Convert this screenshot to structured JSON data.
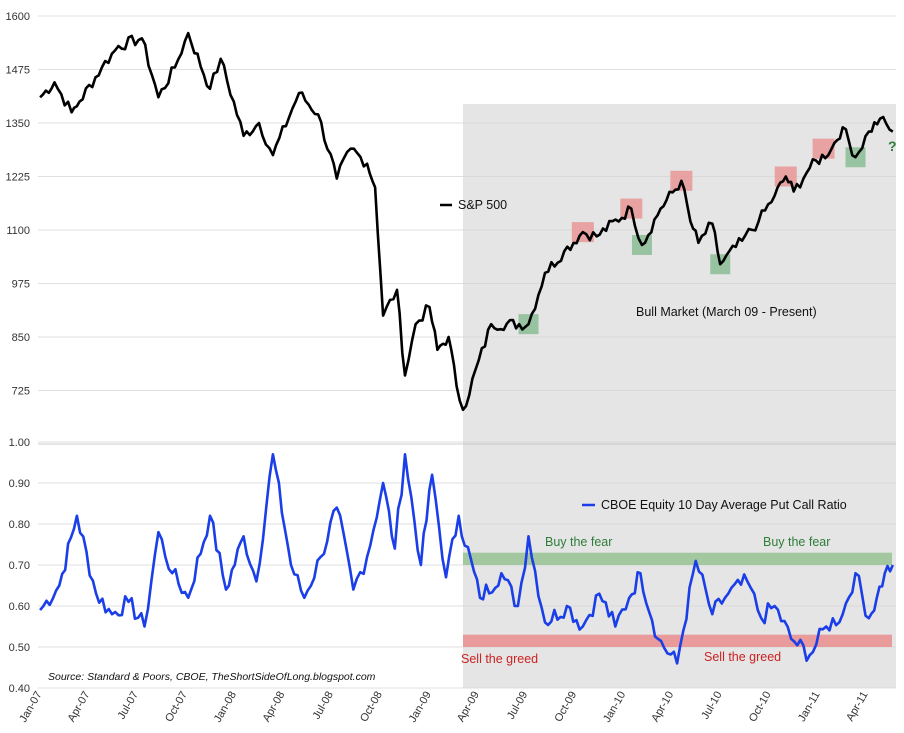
{
  "chart_data": [
    {
      "type": "line",
      "series": [
        {
          "name": "S&P 500",
          "color": "#000000"
        }
      ],
      "ylim": [
        600,
        1600
      ],
      "yticks": [
        "1600",
        "1475",
        "1350",
        "1225",
        "1100",
        "975",
        "850",
        "725"
      ],
      "x_start": "2007-01",
      "x_end": "2011-05",
      "points": [
        [
          "2007-01-05",
          1410
        ],
        [
          "2007-02-01",
          1445
        ],
        [
          "2007-03-05",
          1375
        ],
        [
          "2007-03-20",
          1400
        ],
        [
          "2007-05-01",
          1480
        ],
        [
          "2007-06-01",
          1530
        ],
        [
          "2007-07-15",
          1548
        ],
        [
          "2007-08-15",
          1410
        ],
        [
          "2007-09-15",
          1480
        ],
        [
          "2007-10-10",
          1560
        ],
        [
          "2007-11-20",
          1430
        ],
        [
          "2007-12-10",
          1500
        ],
        [
          "2008-01-22",
          1320
        ],
        [
          "2008-02-20",
          1350
        ],
        [
          "2008-03-17",
          1275
        ],
        [
          "2008-05-05",
          1420
        ],
        [
          "2008-06-10",
          1370
        ],
        [
          "2008-07-15",
          1220
        ],
        [
          "2008-08-10",
          1290
        ],
        [
          "2008-09-10",
          1255
        ],
        [
          "2008-09-25",
          1200
        ],
        [
          "2008-10-10",
          900
        ],
        [
          "2008-11-05",
          960
        ],
        [
          "2008-11-20",
          760
        ],
        [
          "2008-12-10",
          880
        ],
        [
          "2009-01-05",
          920
        ],
        [
          "2009-01-20",
          820
        ],
        [
          "2009-02-10",
          850
        ],
        [
          "2009-02-25",
          735
        ],
        [
          "2009-03-09",
          680
        ],
        [
          "2009-05-01",
          880
        ],
        [
          "2009-07-10",
          880
        ],
        [
          "2009-08-10",
          1000
        ],
        [
          "2009-09-15",
          1050
        ],
        [
          "2009-10-20",
          1095
        ],
        [
          "2009-11-15",
          1085
        ],
        [
          "2010-01-19",
          1150
        ],
        [
          "2010-02-08",
          1065
        ],
        [
          "2010-03-15",
          1150
        ],
        [
          "2010-04-23",
          1215
        ],
        [
          "2010-05-10",
          1120
        ],
        [
          "2010-05-25",
          1070
        ],
        [
          "2010-06-20",
          1115
        ],
        [
          "2010-07-05",
          1020
        ],
        [
          "2010-08-15",
          1075
        ],
        [
          "2010-09-15",
          1120
        ],
        [
          "2010-10-15",
          1180
        ],
        [
          "2010-11-05",
          1225
        ],
        [
          "2010-11-20",
          1190
        ],
        [
          "2010-12-20",
          1245
        ],
        [
          "2011-01-30",
          1290
        ],
        [
          "2011-02-20",
          1340
        ],
        [
          "2011-03-16",
          1270
        ],
        [
          "2011-04-10",
          1330
        ],
        [
          "2011-05-01",
          1360
        ],
        [
          "2011-05-25",
          1330
        ]
      ],
      "legend": "S&P 500",
      "annotations": [
        "Bull Market (March 09 - Present)",
        "?"
      ],
      "shaded_region": {
        "x_start": "2009-03-09",
        "x_end": "2011-05",
        "color": "#e5e5e5"
      },
      "green_markers": [
        "2009-07-10",
        "2010-02-08",
        "2010-07-05",
        "2011-03-16"
      ],
      "red_markers": [
        "2009-10-20",
        "2010-01-19",
        "2010-04-23",
        "2010-11-05",
        "2011-01-15"
      ]
    },
    {
      "type": "line",
      "series": [
        {
          "name": "CBOE Equity 10 Day Average Put Call Ratio",
          "color": "#1a3ee8"
        }
      ],
      "ylim": [
        0.4,
        1.0
      ],
      "yticks": [
        "1.00",
        "0.90",
        "0.80",
        "0.70",
        "0.60",
        "0.50",
        "0.40"
      ],
      "xticks": [
        "Jan-07",
        "Apr-07",
        "Jul-07",
        "Oct-07",
        "Jan-08",
        "Apr-08",
        "Jul-08",
        "Oct-08",
        "Jan-09",
        "Apr-09",
        "Jul-09",
        "Oct-09",
        "Jan-10",
        "Apr-10",
        "Jul-10",
        "Oct-10",
        "Jan-11",
        "Apr-11"
      ],
      "points": [
        [
          "2007-01-05",
          0.59
        ],
        [
          "2007-02-10",
          0.65
        ],
        [
          "2007-03-15",
          0.82
        ],
        [
          "2007-04-20",
          0.63
        ],
        [
          "2007-05-20",
          0.58
        ],
        [
          "2007-06-20",
          0.61
        ],
        [
          "2007-07-20",
          0.55
        ],
        [
          "2007-08-15",
          0.78
        ],
        [
          "2007-09-10",
          0.68
        ],
        [
          "2007-10-10",
          0.62
        ],
        [
          "2007-11-20",
          0.82
        ],
        [
          "2007-12-20",
          0.64
        ],
        [
          "2008-01-22",
          0.77
        ],
        [
          "2008-02-15",
          0.66
        ],
        [
          "2008-03-17",
          0.97
        ],
        [
          "2008-04-20",
          0.7
        ],
        [
          "2008-05-15",
          0.62
        ],
        [
          "2008-06-15",
          0.72
        ],
        [
          "2008-07-15",
          0.84
        ],
        [
          "2008-08-15",
          0.64
        ],
        [
          "2008-09-10",
          0.72
        ],
        [
          "2008-10-10",
          0.9
        ],
        [
          "2008-11-01",
          0.74
        ],
        [
          "2008-11-20",
          0.97
        ],
        [
          "2008-12-20",
          0.7
        ],
        [
          "2009-01-10",
          0.92
        ],
        [
          "2009-02-05",
          0.67
        ],
        [
          "2009-03-01",
          0.82
        ],
        [
          "2009-04-10",
          0.62
        ],
        [
          "2009-05-20",
          0.68
        ],
        [
          "2009-06-20",
          0.6
        ],
        [
          "2009-07-10",
          0.77
        ],
        [
          "2009-08-10",
          0.56
        ],
        [
          "2009-09-20",
          0.6
        ],
        [
          "2009-10-20",
          0.55
        ],
        [
          "2009-11-20",
          0.63
        ],
        [
          "2009-12-20",
          0.55
        ],
        [
          "2010-01-15",
          0.62
        ],
        [
          "2010-02-05",
          0.68
        ],
        [
          "2010-03-10",
          0.52
        ],
        [
          "2010-04-15",
          0.46
        ],
        [
          "2010-05-20",
          0.71
        ],
        [
          "2010-06-20",
          0.58
        ],
        [
          "2010-07-20",
          0.63
        ],
        [
          "2010-08-25",
          0.66
        ],
        [
          "2010-09-20",
          0.57
        ],
        [
          "2010-10-15",
          0.6
        ],
        [
          "2010-11-15",
          0.52
        ],
        [
          "2010-12-20",
          0.48
        ],
        [
          "2011-01-20",
          0.55
        ],
        [
          "2011-02-20",
          0.58
        ],
        [
          "2011-03-16",
          0.68
        ],
        [
          "2011-04-10",
          0.57
        ],
        [
          "2011-04-25",
          0.62
        ],
        [
          "2011-05-10",
          0.68
        ],
        [
          "2011-05-25",
          0.7
        ]
      ],
      "legend": "CBOE Equity 10 Day Average Put Call Ratio",
      "bands": [
        {
          "label": "Buy the fear",
          "y_low": 0.7,
          "y_high": 0.73,
          "color": "#a3c8a0"
        },
        {
          "label": "Sell the greed",
          "y_low": 0.5,
          "y_high": 0.53,
          "color": "#e99a9a"
        }
      ],
      "annotations": [
        "Buy the fear",
        "Buy the fear",
        "Sell the greed",
        "Sell the greed"
      ]
    }
  ],
  "source_note": "Source: Standard & Poors, CBOE, TheShortSideOfLong.blogspot.com",
  "colors": {
    "spx": "#000000",
    "pcr": "#1a3ee8",
    "shade": "#e5e5e5",
    "green_box": "#8fbf99",
    "red_box": "#e89a9a",
    "green_text": "#2e7d3a",
    "red_text": "#cc2222",
    "grid": "#d4d4d4"
  }
}
